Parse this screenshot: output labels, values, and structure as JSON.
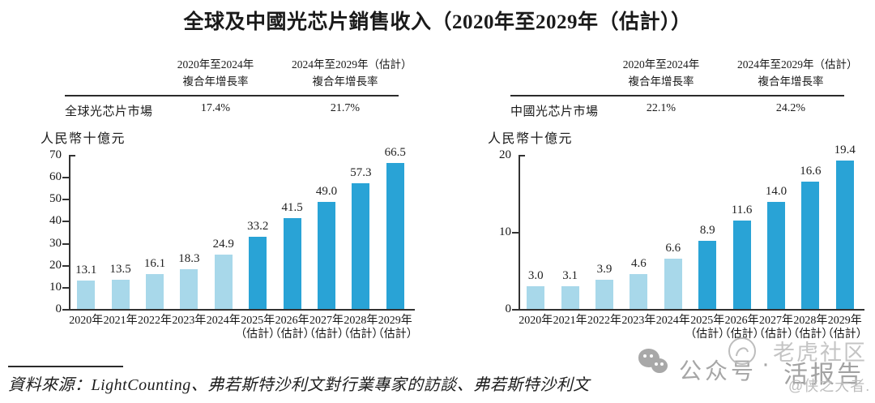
{
  "title": "全球及中國光芯片銷售收入（2020年至2029年（估計））",
  "colors": {
    "bar_light": "#A8D8EA",
    "bar_dark": "#29A3D6",
    "axis": "#333333",
    "text": "#1A1A1A",
    "watermark_gray": "#A8A8A8"
  },
  "panels": [
    {
      "table": {
        "row_label": "全球光芯片市場",
        "col1_header_line1": "2020年至2024年",
        "col1_header_line2": "複合年增長率",
        "col2_header_line1": "2024年至2029年（估計）",
        "col2_header_line2": "複合年增長率",
        "col1_value": "17.4%",
        "col2_value": "21.7%"
      },
      "unit_label": "人民幣十億元",
      "chart": {
        "ymax": 70,
        "yticks": [
          70,
          60,
          50,
          40,
          30,
          20,
          10,
          0
        ],
        "bars": [
          {
            "year": "2020年",
            "sub": "",
            "label": "13.1",
            "value": 13.1,
            "estimate": false
          },
          {
            "year": "2021年",
            "sub": "",
            "label": "13.5",
            "value": 13.5,
            "estimate": false
          },
          {
            "year": "2022年",
            "sub": "",
            "label": "16.1",
            "value": 16.1,
            "estimate": false
          },
          {
            "year": "2023年",
            "sub": "",
            "label": "18.3",
            "value": 18.3,
            "estimate": false
          },
          {
            "year": "2024年",
            "sub": "",
            "label": "24.9",
            "value": 24.9,
            "estimate": false
          },
          {
            "year": "2025年",
            "sub": "（估計）",
            "label": "33.2",
            "value": 33.2,
            "estimate": true
          },
          {
            "year": "2026年",
            "sub": "（估計）",
            "label": "41.5",
            "value": 41.5,
            "estimate": true
          },
          {
            "year": "2027年",
            "sub": "（估計）",
            "label": "49.0",
            "value": 49.0,
            "estimate": true
          },
          {
            "year": "2028年",
            "sub": "（估計）",
            "label": "57.3",
            "value": 57.3,
            "estimate": true
          },
          {
            "year": "2029年",
            "sub": "（估計）",
            "label": "66.5",
            "value": 66.5,
            "estimate": true
          }
        ]
      }
    },
    {
      "table": {
        "row_label": "中國光芯片市場",
        "col1_header_line1": "2020年至2024年",
        "col1_header_line2": "複合年增長率",
        "col2_header_line1": "2024年至2029年（估計）",
        "col2_header_line2": "複合年增長率",
        "col1_value": "22.1%",
        "col2_value": "24.2%"
      },
      "unit_label": "人民幣十億元",
      "chart": {
        "ymax": 20,
        "yticks": [
          20,
          10,
          0
        ],
        "bars": [
          {
            "year": "2020年",
            "sub": "",
            "label": "3.0",
            "value": 3.0,
            "estimate": false
          },
          {
            "year": "2021年",
            "sub": "",
            "label": "3.1",
            "value": 3.1,
            "estimate": false
          },
          {
            "year": "2022年",
            "sub": "",
            "label": "3.9",
            "value": 3.9,
            "estimate": false
          },
          {
            "year": "2023年",
            "sub": "",
            "label": "4.6",
            "value": 4.6,
            "estimate": false
          },
          {
            "year": "2024年",
            "sub": "",
            "label": "6.6",
            "value": 6.6,
            "estimate": false
          },
          {
            "year": "2025年",
            "sub": "（估計）",
            "label": "8.9",
            "value": 8.9,
            "estimate": true
          },
          {
            "year": "2026年",
            "sub": "（估計）",
            "label": "11.6",
            "value": 11.6,
            "estimate": true
          },
          {
            "year": "2027年",
            "sub": "（估計）",
            "label": "14.0",
            "value": 14.0,
            "estimate": true
          },
          {
            "year": "2028年",
            "sub": "（估計）",
            "label": "16.6",
            "value": 16.6,
            "estimate": true
          },
          {
            "year": "2029年",
            "sub": "（估計）",
            "label": "19.4",
            "value": 19.4,
            "estimate": true
          }
        ]
      }
    }
  ],
  "source_note": "資料來源：LightCounting、弗若斯特沙利文對行業專家的訪談、弗若斯特沙利文",
  "watermark": {
    "platform_label": "公众号",
    "separator": "·",
    "brand_top": "老虎社区",
    "brand_bottom": "活报告",
    "handle": "@侠之大者."
  },
  "chart_data": [
    {
      "type": "bar",
      "title": "全球光芯片市場",
      "categories": [
        "2020年",
        "2021年",
        "2022年",
        "2023年",
        "2024年",
        "2025年（估計）",
        "2026年（估計）",
        "2027年（估計）",
        "2028年（估計）",
        "2029年（估計）"
      ],
      "values": [
        13.1,
        13.5,
        16.1,
        18.3,
        24.9,
        33.2,
        41.5,
        49.0,
        57.3,
        66.5
      ],
      "ylabel": "人民幣十億元",
      "ylim": [
        0,
        70
      ],
      "yticks": [
        0,
        10,
        20,
        30,
        40,
        50,
        60,
        70
      ],
      "grid": false,
      "legend": "none",
      "annotations": {
        "cagr_2020_2024": "17.4%",
        "cagr_2024_2029_estimate": "21.7%"
      },
      "series_colors": {
        "2020-2024_actual": "#A8D8EA",
        "2025-2029_estimate": "#29A3D6"
      }
    },
    {
      "type": "bar",
      "title": "中國光芯片市場",
      "categories": [
        "2020年",
        "2021年",
        "2022年",
        "2023年",
        "2024年",
        "2025年（估計）",
        "2026年（估計）",
        "2027年（估計）",
        "2028年（估計）",
        "2029年（估計）"
      ],
      "values": [
        3.0,
        3.1,
        3.9,
        4.6,
        6.6,
        8.9,
        11.6,
        14.0,
        16.6,
        19.4
      ],
      "ylabel": "人民幣十億元",
      "ylim": [
        0,
        20
      ],
      "yticks": [
        0,
        10,
        20
      ],
      "grid": false,
      "legend": "none",
      "annotations": {
        "cagr_2020_2024": "22.1%",
        "cagr_2024_2029_estimate": "24.2%"
      },
      "series_colors": {
        "2020-2024_actual": "#A8D8EA",
        "2025-2029_estimate": "#29A3D6"
      }
    }
  ]
}
